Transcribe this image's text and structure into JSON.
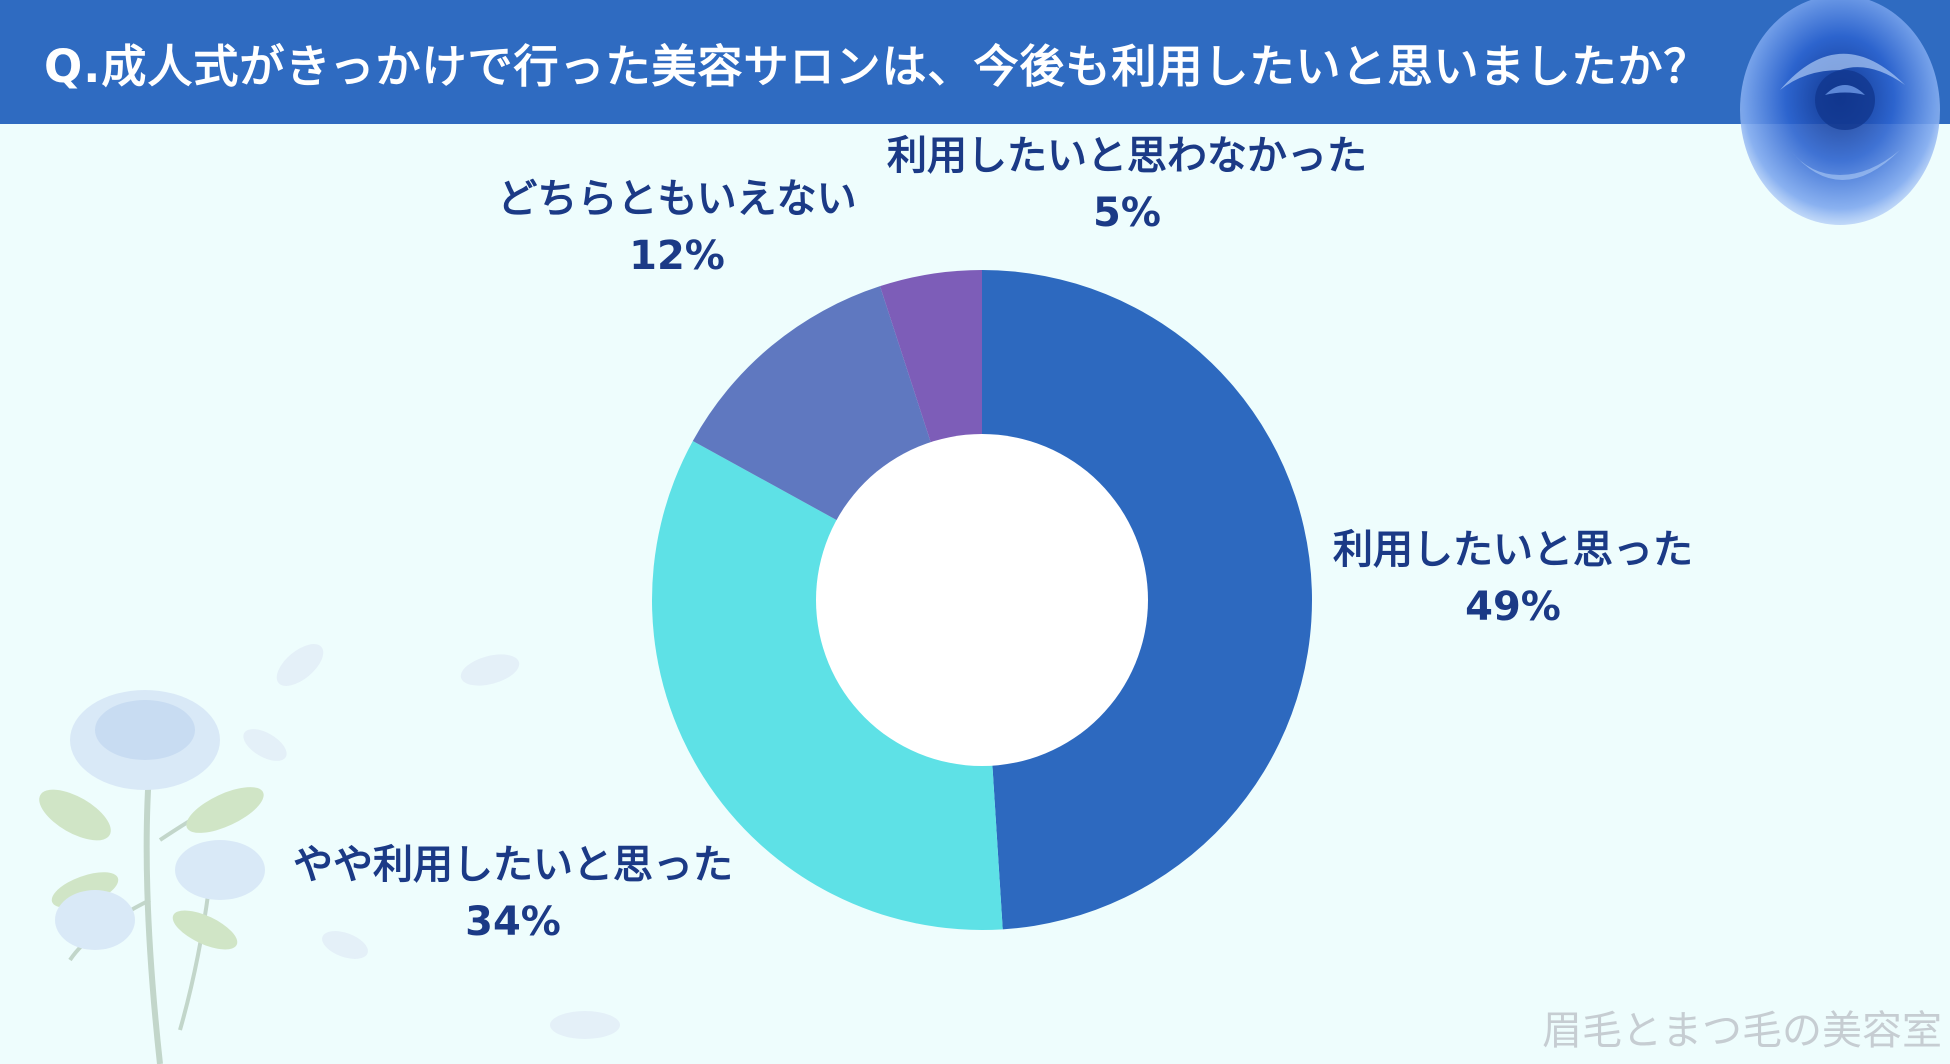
{
  "header": {
    "title": "Q.成人式がきっかけで行った美容サロンは、今後も利用したいと思いましたか？"
  },
  "watermark": "眉毛とまつ毛の美容室",
  "colors": {
    "header_bg": "#2f6bc1",
    "page_bg": "#eefdfd",
    "label_text": "#1b3a86"
  },
  "chart_data": {
    "type": "pie",
    "variant": "donut",
    "title": "Q.成人式がきっかけで行った美容サロンは、今後も利用したいと思いましたか？",
    "slices": [
      {
        "label": "利用したいと思った",
        "value": 49,
        "value_label": "49%",
        "color": "#2d69bf"
      },
      {
        "label": "やや利用したいと思った",
        "value": 34,
        "value_label": "34%",
        "color": "#5ee1e6"
      },
      {
        "label": "どちらともいえない",
        "value": 12,
        "value_label": "12%",
        "color": "#5f78c0"
      },
      {
        "label": "利用したいと思わなかった",
        "value": 5,
        "value_label": "5%",
        "color": "#7d5db8"
      }
    ],
    "start_angle": "12 o'clock",
    "direction": "clockwise",
    "legend": "none"
  }
}
